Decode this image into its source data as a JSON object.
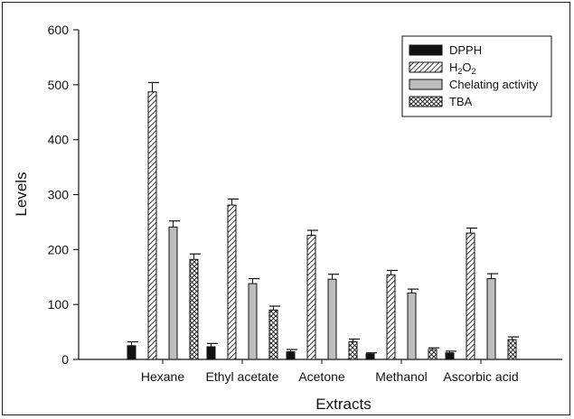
{
  "chart_data": {
    "type": "bar",
    "title": "",
    "xlabel": "Extracts",
    "ylabel": "Levels",
    "ylim": [
      0,
      600
    ],
    "yticks": [
      0,
      100,
      200,
      300,
      400,
      500,
      600
    ],
    "categories": [
      "Hexane",
      "Ethyl acetate",
      "Acetone",
      "Methanol",
      "Ascorbic acid"
    ],
    "legend_position": "top-right",
    "series": [
      {
        "name": "DPPH",
        "pattern": "solid-black",
        "values": [
          25,
          23,
          14,
          10,
          12
        ],
        "errors": [
          7,
          6,
          4,
          2,
          3
        ]
      },
      {
        "name": "H2O2",
        "pattern": "diagonal-hatch",
        "values": [
          487,
          281,
          226,
          154,
          230
        ],
        "errors": [
          17,
          11,
          9,
          8,
          9
        ]
      },
      {
        "name": "Chelating activity",
        "pattern": "solid-gray",
        "values": [
          241,
          138,
          146,
          121,
          147
        ],
        "errors": [
          11,
          9,
          9,
          7,
          9
        ]
      },
      {
        "name": "TBA",
        "pattern": "cross-hatch",
        "values": [
          182,
          90,
          32,
          18,
          36
        ],
        "errors": [
          10,
          7,
          5,
          3,
          5
        ]
      }
    ]
  }
}
